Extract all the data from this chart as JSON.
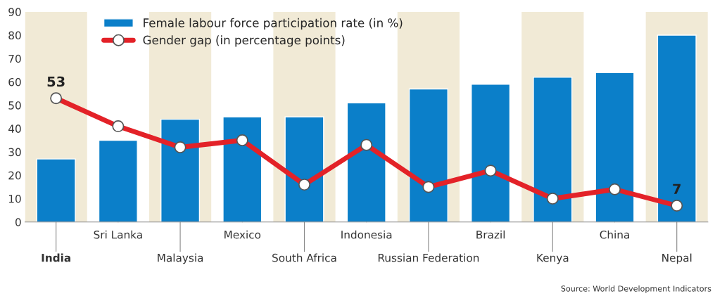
{
  "chart_data": {
    "type": "bar",
    "categories": [
      "India",
      "Sri Lanka",
      "Malaysia",
      "Mexico",
      "South Africa",
      "Indonesia",
      "Russian Federation",
      "Brazil",
      "Kenya",
      "China",
      "Nepal"
    ],
    "series": [
      {
        "name": "Female labour force participation rate (in %)",
        "color": "#0b7fc9",
        "values": [
          27,
          35,
          44,
          45,
          45,
          51,
          57,
          59,
          62,
          64,
          80
        ]
      },
      {
        "name": "Gender gap (in percentage points)",
        "type": "line",
        "color": "#e32228",
        "marker": "circle",
        "values": [
          53,
          41,
          32,
          35,
          16,
          33,
          15,
          22,
          10,
          14,
          7
        ],
        "value_labels": [
          "53",
          null,
          null,
          null,
          null,
          null,
          null,
          null,
          null,
          null,
          "7"
        ]
      }
    ],
    "ylim": [
      0,
      90
    ],
    "yticks": [
      0,
      10,
      20,
      30,
      40,
      50,
      60,
      70,
      80,
      90
    ],
    "grid": false,
    "legend": "top left",
    "annotations": [
      "Source: World Development Indicators"
    ]
  }
}
